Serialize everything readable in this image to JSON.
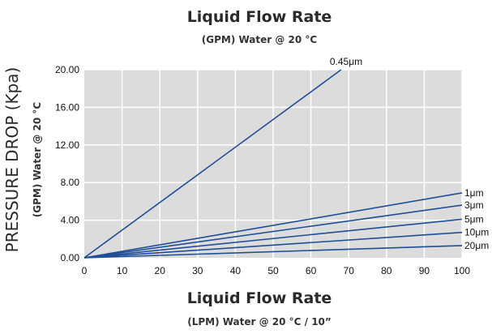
{
  "title": "Liquid Flow Rate",
  "subtitle": "(GPM) Water @ 20 °C",
  "x_title": "Liquid Flow Rate",
  "x_subtitle": "(LPM) Water @ 20 °C / 10”",
  "y_title": "PRESSURE DROP (Kpa)",
  "y_subtitle": "(GPM) Water @ 20 °C",
  "chart_data": {
    "type": "line",
    "title": "Liquid Flow Rate",
    "subtitle": "(GPM) Water @ 20 °C",
    "xlabel": "Liquid Flow Rate",
    "xlabel_sub": "(LPM) Water @ 20 °C / 10”",
    "ylabel": "PRESSURE DROP (Kpa)",
    "ylabel_sub": "(GPM) Water @ 20 °C",
    "xlim": [
      0,
      100
    ],
    "ylim": [
      0,
      20
    ],
    "x_ticks": [
      "0",
      "10",
      "20",
      "30",
      "40",
      "50",
      "60",
      "70",
      "80",
      "90",
      "100"
    ],
    "y_ticks": [
      "0.00",
      "4.00",
      "8.00",
      "12.00",
      "16.00",
      "20.00"
    ],
    "grid": true,
    "plot_background": "#dcdcdc",
    "line_color": "#1f4e96",
    "series": [
      {
        "name": "0.45μm",
        "x": [
          0,
          68
        ],
        "y": [
          0,
          20.0
        ]
      },
      {
        "name": "1μm",
        "x": [
          0,
          100
        ],
        "y": [
          0,
          6.9
        ]
      },
      {
        "name": "3μm",
        "x": [
          0,
          100
        ],
        "y": [
          0,
          5.6
        ]
      },
      {
        "name": "5μm",
        "x": [
          0,
          100
        ],
        "y": [
          0,
          4.1
        ]
      },
      {
        "name": "10μm",
        "x": [
          0,
          100
        ],
        "y": [
          0,
          2.7
        ]
      },
      {
        "name": "20μm",
        "x": [
          0,
          100
        ],
        "y": [
          0,
          1.3
        ]
      }
    ]
  }
}
